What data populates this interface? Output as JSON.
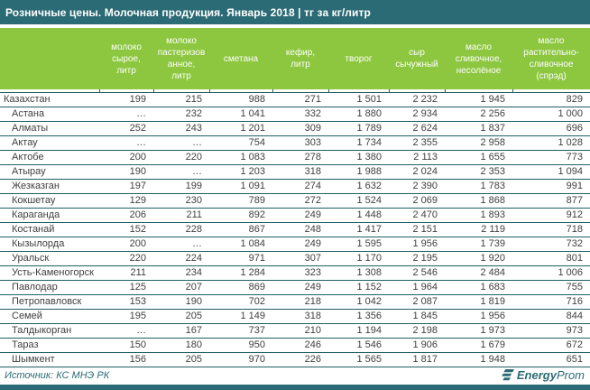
{
  "chart_data": {
    "type": "table",
    "title": "Розничные цены. Молочная продукция. Январь 2018 | тг за кг/литр",
    "columns": [
      "",
      "молоко сырое, литр",
      "молоко пастеризованное, литр",
      "сметана",
      "кефир, литр",
      "творог",
      "сыр сычужный",
      "масло сливочное, несолёное",
      "масло растительно-сливочное (спрэд)"
    ],
    "rows": [
      {
        "label": "Казахстан",
        "values": [
          "199",
          "215",
          "988",
          "271",
          "1 501",
          "2 232",
          "1 945",
          "829"
        ]
      },
      {
        "label": "Астана",
        "values": [
          "…",
          "232",
          "1 041",
          "332",
          "1 880",
          "2 934",
          "2 256",
          "1 000"
        ]
      },
      {
        "label": "Алматы",
        "values": [
          "252",
          "243",
          "1 201",
          "309",
          "1 789",
          "2 624",
          "1 837",
          "696"
        ]
      },
      {
        "label": "Актау",
        "values": [
          "…",
          "…",
          "754",
          "303",
          "1 734",
          "2 355",
          "2 958",
          "1 028"
        ]
      },
      {
        "label": "Актобе",
        "values": [
          "200",
          "220",
          "1 083",
          "278",
          "1 380",
          "2 113",
          "1 655",
          "773"
        ]
      },
      {
        "label": "Атырау",
        "values": [
          "190",
          "…",
          "1 203",
          "318",
          "1 988",
          "2 024",
          "2 353",
          "1 094"
        ]
      },
      {
        "label": "Жезказган",
        "values": [
          "197",
          "199",
          "1 091",
          "274",
          "1 632",
          "2 390",
          "1 783",
          "991"
        ]
      },
      {
        "label": "Кокшетау",
        "values": [
          "129",
          "230",
          "789",
          "272",
          "1 524",
          "2 069",
          "1 868",
          "877"
        ]
      },
      {
        "label": "Караганда",
        "values": [
          "206",
          "211",
          "892",
          "249",
          "1 448",
          "2 470",
          "1 893",
          "912"
        ]
      },
      {
        "label": "Костанай",
        "values": [
          "152",
          "228",
          "867",
          "248",
          "1 417",
          "2 151",
          "2 119",
          "718"
        ]
      },
      {
        "label": "Кызылорда",
        "values": [
          "200",
          "…",
          "1 084",
          "249",
          "1 595",
          "1 956",
          "1 739",
          "732"
        ]
      },
      {
        "label": "Уральск",
        "values": [
          "220",
          "224",
          "971",
          "307",
          "1 170",
          "2 195",
          "1 920",
          "801"
        ]
      },
      {
        "label": "Усть-Каменогорск",
        "values": [
          "211",
          "234",
          "1 284",
          "323",
          "1 308",
          "2 546",
          "2 484",
          "1 006"
        ]
      },
      {
        "label": "Павлодар",
        "values": [
          "125",
          "207",
          "869",
          "249",
          "1 152",
          "1 964",
          "1 683",
          "755"
        ]
      },
      {
        "label": "Петропавловск",
        "values": [
          "153",
          "190",
          "702",
          "218",
          "1 042",
          "2 087",
          "1 819",
          "716"
        ]
      },
      {
        "label": "Семей",
        "values": [
          "195",
          "205",
          "1 149",
          "318",
          "1 356",
          "1 845",
          "1 956",
          "844"
        ]
      },
      {
        "label": "Талдыкорган",
        "values": [
          "…",
          "167",
          "737",
          "210",
          "1 194",
          "2 198",
          "1 973",
          "973"
        ]
      },
      {
        "label": "Тараз",
        "values": [
          "150",
          "180",
          "950",
          "246",
          "1 546",
          "1 906",
          "1 679",
          "672"
        ]
      },
      {
        "label": "Шымкент",
        "values": [
          "156",
          "205",
          "970",
          "226",
          "1 565",
          "1 817",
          "1 948",
          "651"
        ]
      }
    ]
  },
  "footer": {
    "source": "Источник: КС МНЭ РК",
    "logo": {
      "bold": "Energy",
      "regular": "Prom",
      "icon": "energyprom-bars-icon"
    }
  },
  "colors": {
    "teal": "#2B6B75",
    "green": "#8DC63F",
    "border": "#1E5F66",
    "text": "#3F3F3F"
  }
}
